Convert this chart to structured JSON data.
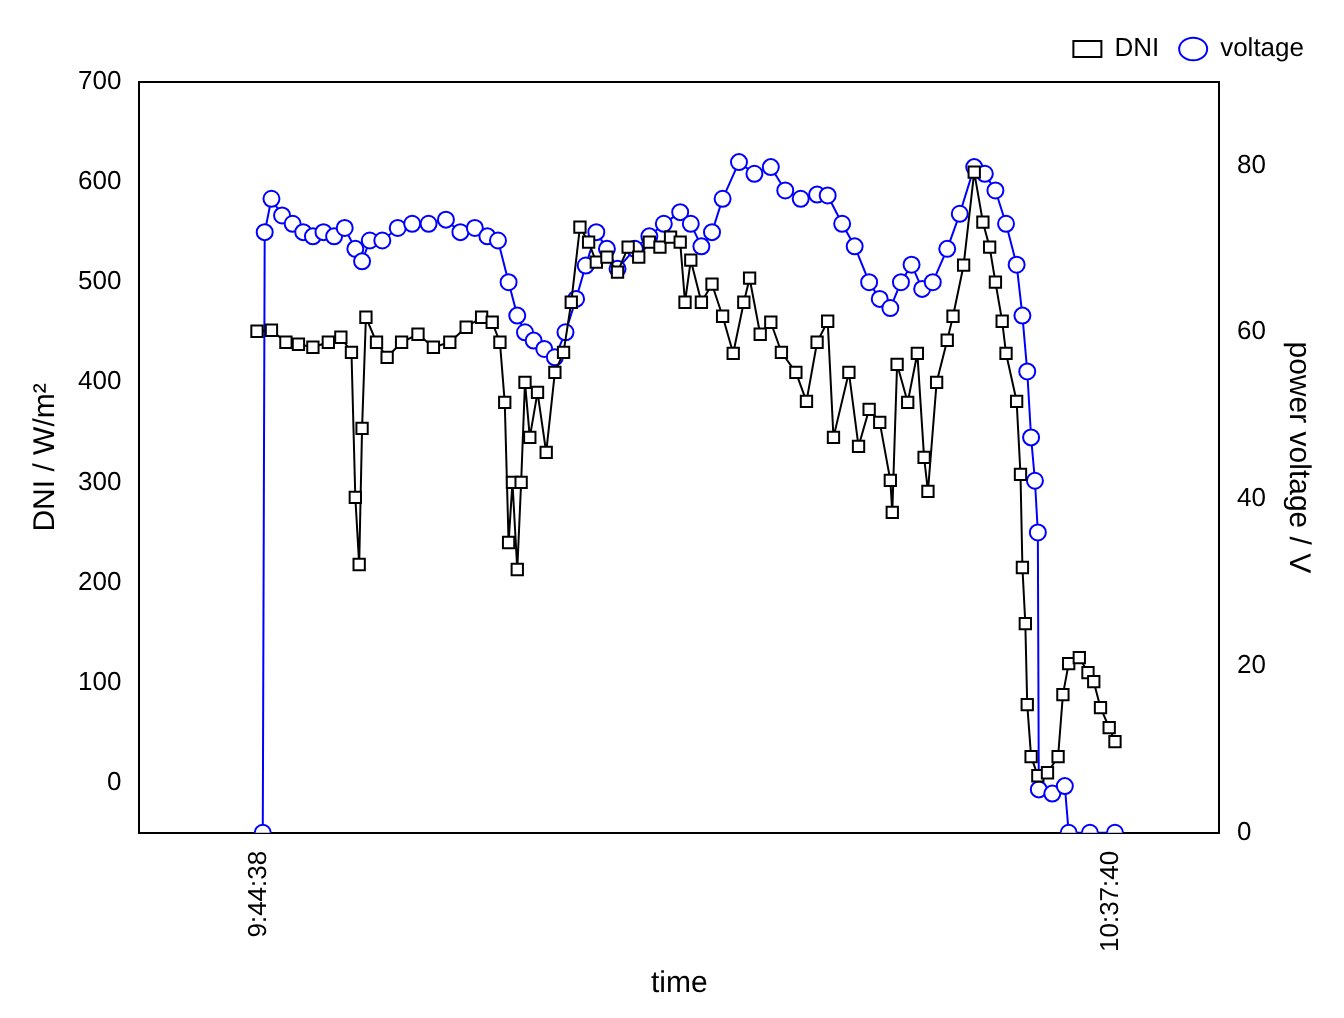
{
  "chart_data": {
    "type": "line",
    "xlabel": "time",
    "ylabel": "DNI / W/m²",
    "y2label": "power voltage / V",
    "xlim": [
      9.62,
      10.74
    ],
    "xticks": [
      {
        "value": 9.7439,
        "label": "9:44:38"
      },
      {
        "value": 10.6278,
        "label": "10:37:40"
      }
    ],
    "ylim": [
      -50,
      700
    ],
    "yticks": [
      0,
      100,
      200,
      300,
      400,
      500,
      600,
      700
    ],
    "y2lim": [
      0,
      90
    ],
    "y2ticks": [
      0,
      20,
      40,
      60,
      80
    ],
    "legend": "top right",
    "grid": false,
    "line_style": "solid",
    "series": [
      {
        "name": "DNI",
        "color": "#000000",
        "marker": "square",
        "x": [
          9.742,
          9.757,
          9.772,
          9.785,
          9.8,
          9.816,
          9.829,
          9.84,
          9.844,
          9.848,
          9.851,
          9.855,
          9.866,
          9.877,
          9.892,
          9.909,
          9.925,
          9.942,
          9.959,
          9.975,
          9.986,
          9.994,
          9.999,
          10.003,
          10.007,
          10.012,
          10.016,
          10.02,
          10.025,
          10.033,
          10.042,
          10.051,
          10.06,
          10.068,
          10.077,
          10.086,
          10.094,
          10.105,
          10.116,
          10.127,
          10.138,
          10.149,
          10.16,
          10.171,
          10.181,
          10.186,
          10.192,
          10.203,
          10.214,
          10.225,
          10.236,
          10.247,
          10.253,
          10.264,
          10.275,
          10.286,
          10.301,
          10.312,
          10.323,
          10.334,
          10.34,
          10.356,
          10.366,
          10.377,
          10.388,
          10.399,
          10.401,
          10.406,
          10.417,
          10.427,
          10.434,
          10.438,
          10.447,
          10.458,
          10.464,
          10.475,
          10.486,
          10.495,
          10.502,
          10.508,
          10.515,
          10.519,
          10.53,
          10.534,
          10.536,
          10.539,
          10.541,
          10.545,
          10.552,
          10.562,
          10.573,
          10.578,
          10.584,
          10.595,
          10.604,
          10.61,
          10.617,
          10.626,
          10.632
        ],
        "values": [
          451,
          452,
          440,
          438,
          435,
          440,
          445,
          430,
          285,
          218,
          354,
          465,
          440,
          425,
          440,
          448,
          435,
          440,
          455,
          465,
          460,
          440,
          380,
          240,
          300,
          213,
          300,
          400,
          345,
          390,
          330,
          410,
          430,
          480,
          555,
          540,
          520,
          525,
          510,
          535,
          525,
          540,
          535,
          545,
          540,
          480,
          522,
          480,
          498,
          466,
          429,
          480,
          504,
          448,
          460,
          430,
          410,
          381,
          440,
          461,
          345,
          410,
          336,
          373,
          360,
          302,
          270,
          418,
          380,
          429,
          325,
          291,
          400,
          442,
          466,
          517,
          610,
          560,
          535,
          500,
          461,
          429,
          381,
          308,
          215,
          159,
          78,
          26,
          7,
          10,
          26,
          88,
          119,
          125,
          110,
          101,
          75,
          55,
          41
        ]
      },
      {
        "name": "voltage",
        "color": "#0000ff",
        "marker": "circle",
        "axis": "y2",
        "x": [
          9.748,
          9.75,
          9.757,
          9.768,
          9.779,
          9.79,
          9.8,
          9.811,
          9.822,
          9.833,
          9.844,
          9.851,
          9.859,
          9.872,
          9.888,
          9.903,
          9.92,
          9.938,
          9.953,
          9.968,
          9.981,
          9.992,
          10.003,
          10.012,
          10.02,
          10.029,
          10.04,
          10.051,
          10.062,
          10.073,
          10.083,
          10.094,
          10.105,
          10.116,
          10.134,
          10.149,
          10.164,
          10.181,
          10.192,
          10.203,
          10.214,
          10.225,
          10.242,
          10.258,
          10.275,
          10.29,
          10.306,
          10.323,
          10.334,
          10.349,
          10.362,
          10.377,
          10.388,
          10.399,
          10.41,
          10.421,
          10.432,
          10.443,
          10.458,
          10.471,
          10.486,
          10.497,
          10.508,
          10.519,
          10.53,
          10.536,
          10.541,
          10.545,
          10.549,
          10.552,
          10.553,
          10.567,
          10.58,
          10.584,
          10.606,
          10.632
        ],
        "values": [
          0,
          72,
          76,
          74,
          73,
          72,
          71.5,
          72,
          71.5,
          72.5,
          70,
          68.5,
          71,
          71,
          72.5,
          73,
          73,
          73.5,
          72,
          72.5,
          71.5,
          71,
          66,
          62,
          60,
          59,
          58,
          57,
          60,
          64,
          68,
          72,
          70,
          67.6,
          70,
          71.5,
          73,
          74.4,
          73,
          70.3,
          72,
          76,
          80.4,
          79,
          79.8,
          77,
          76,
          76.5,
          76.4,
          73,
          70.3,
          66,
          64,
          62.9,
          66,
          68.1,
          65.2,
          66,
          70,
          74.2,
          79.8,
          79,
          77,
          73,
          68.1,
          62,
          55.3,
          47.4,
          42.2,
          36,
          5.2,
          4.7,
          5.6,
          0,
          0,
          0
        ]
      }
    ]
  }
}
